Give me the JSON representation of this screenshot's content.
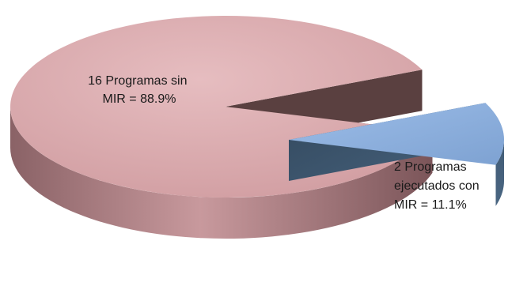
{
  "chart_data": {
    "type": "pie",
    "style": "3d-exploded",
    "slices": [
      {
        "value": 16,
        "percent": 88.9,
        "label_lines": [
          "16 Programas sin",
          "MIR = 88.9%"
        ],
        "color": "#dcaaae",
        "side_color": "#b08286",
        "exploded": false
      },
      {
        "value": 2,
        "percent": 11.1,
        "label_lines": [
          "2 Programas",
          "ejecutados con",
          "MIR = 11.1%"
        ],
        "color": "#8eb1df",
        "side_color": "#3f5870",
        "exploded": true
      }
    ]
  }
}
